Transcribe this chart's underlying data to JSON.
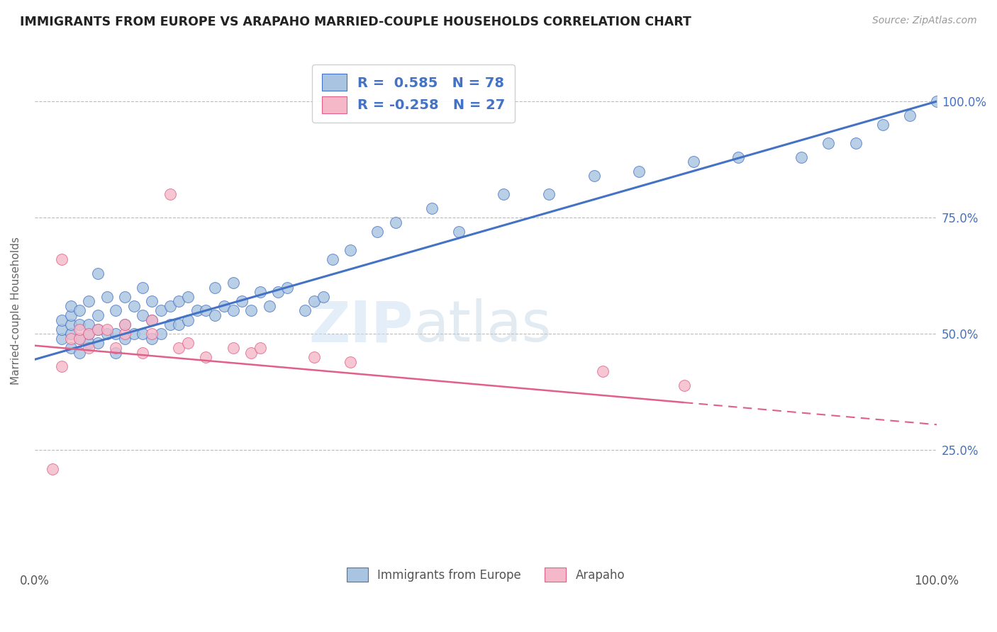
{
  "title": "IMMIGRANTS FROM EUROPE VS ARAPAHO MARRIED-COUPLE HOUSEHOLDS CORRELATION CHART",
  "source": "Source: ZipAtlas.com",
  "ylabel": "Married-couple Households",
  "legend_blue_label": "Immigrants from Europe",
  "legend_pink_label": "Arapaho",
  "legend_r_blue": "R =  0.585",
  "legend_n_blue": "N = 78",
  "legend_r_pink": "R = -0.258",
  "legend_n_pink": "N = 27",
  "blue_color": "#a8c4e0",
  "blue_line_color": "#4472c4",
  "pink_color": "#f4b8c8",
  "pink_line_color": "#e0608a",
  "watermark_zip": "ZIP",
  "watermark_atlas": "atlas",
  "background_color": "#ffffff",
  "grid_color": "#bbbbbb",
  "blue_scatter_x": [
    0.03,
    0.03,
    0.03,
    0.04,
    0.04,
    0.04,
    0.04,
    0.04,
    0.05,
    0.05,
    0.05,
    0.05,
    0.06,
    0.06,
    0.06,
    0.06,
    0.07,
    0.07,
    0.07,
    0.07,
    0.08,
    0.08,
    0.09,
    0.09,
    0.09,
    0.1,
    0.1,
    0.1,
    0.11,
    0.11,
    0.12,
    0.12,
    0.12,
    0.13,
    0.13,
    0.13,
    0.14,
    0.14,
    0.15,
    0.15,
    0.16,
    0.16,
    0.17,
    0.17,
    0.18,
    0.19,
    0.2,
    0.2,
    0.21,
    0.22,
    0.22,
    0.23,
    0.24,
    0.25,
    0.26,
    0.27,
    0.28,
    0.3,
    0.31,
    0.32,
    0.33,
    0.35,
    0.38,
    0.4,
    0.44,
    0.47,
    0.52,
    0.57,
    0.62,
    0.67,
    0.73,
    0.78,
    0.85,
    0.88,
    0.91,
    0.94,
    0.97,
    1.0
  ],
  "blue_scatter_y": [
    0.49,
    0.51,
    0.53,
    0.47,
    0.5,
    0.52,
    0.54,
    0.56,
    0.46,
    0.49,
    0.52,
    0.55,
    0.48,
    0.5,
    0.52,
    0.57,
    0.48,
    0.51,
    0.54,
    0.63,
    0.5,
    0.58,
    0.46,
    0.5,
    0.55,
    0.49,
    0.52,
    0.58,
    0.5,
    0.56,
    0.5,
    0.54,
    0.6,
    0.49,
    0.53,
    0.57,
    0.5,
    0.55,
    0.52,
    0.56,
    0.52,
    0.57,
    0.53,
    0.58,
    0.55,
    0.55,
    0.54,
    0.6,
    0.56,
    0.55,
    0.61,
    0.57,
    0.55,
    0.59,
    0.56,
    0.59,
    0.6,
    0.55,
    0.57,
    0.58,
    0.66,
    0.68,
    0.72,
    0.74,
    0.77,
    0.72,
    0.8,
    0.8,
    0.84,
    0.85,
    0.87,
    0.88,
    0.88,
    0.91,
    0.91,
    0.95,
    0.97,
    1.0
  ],
  "pink_scatter_x": [
    0.02,
    0.03,
    0.03,
    0.04,
    0.05,
    0.05,
    0.06,
    0.06,
    0.07,
    0.08,
    0.09,
    0.1,
    0.1,
    0.12,
    0.13,
    0.13,
    0.15,
    0.16,
    0.17,
    0.19,
    0.22,
    0.24,
    0.25,
    0.31,
    0.35,
    0.63,
    0.72
  ],
  "pink_scatter_y": [
    0.21,
    0.43,
    0.66,
    0.49,
    0.49,
    0.51,
    0.47,
    0.5,
    0.51,
    0.51,
    0.47,
    0.5,
    0.52,
    0.46,
    0.5,
    0.53,
    0.8,
    0.47,
    0.48,
    0.45,
    0.47,
    0.46,
    0.47,
    0.45,
    0.44,
    0.42,
    0.39
  ],
  "blue_line_x0": 0.0,
  "blue_line_y0": 0.445,
  "blue_line_x1": 1.0,
  "blue_line_y1": 1.0,
  "pink_line_x0": 0.0,
  "pink_line_y0": 0.475,
  "pink_line_x1": 1.0,
  "pink_line_y1": 0.305,
  "ylim_min": 0.0,
  "ylim_max": 1.1,
  "xlim_min": 0.0,
  "xlim_max": 1.0
}
